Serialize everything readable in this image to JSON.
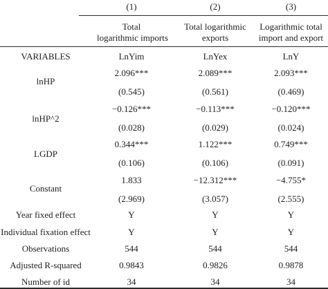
{
  "header": {
    "col_numbers": [
      "(1)",
      "(2)",
      "(3)"
    ],
    "col1_line1": "Total",
    "col1_line2": "logarithmic imports",
    "col2_line1": "Total logarithmic",
    "col2_line2": "exports",
    "col3_line1": "Logarithmic total",
    "col3_line2": "import and export"
  },
  "variables_row": {
    "label": "VARIABLES",
    "values": [
      "LnYim",
      "LnYex",
      "LnY"
    ]
  },
  "rows": [
    {
      "label": "lnHP",
      "coef": [
        "2.096***",
        "2.089***",
        "2.093***"
      ],
      "se": [
        "(0.545)",
        "(0.561)",
        "(0.469)"
      ]
    },
    {
      "label": "lnHP^2",
      "coef": [
        "−0.126***",
        "−0.113***",
        "−0.120***"
      ],
      "se": [
        "(0.028)",
        "(0.029)",
        "(0.024)"
      ]
    },
    {
      "label": "LGDP",
      "coef": [
        "0.344***",
        "1.122***",
        "0.749***"
      ],
      "se": [
        "(0.106)",
        "(0.106)",
        "(0.091)"
      ]
    },
    {
      "label": "Constant",
      "coef": [
        "1.833",
        "−12.312***",
        "−4.755*"
      ],
      "se": [
        "(2.969)",
        "(3.057)",
        "(2.555)"
      ]
    }
  ],
  "summary_rows": [
    {
      "label": "Year fixed effect",
      "values": [
        "Y",
        "Y",
        "Y"
      ]
    },
    {
      "label": "Individual fixation effect",
      "values": [
        "Y",
        "Y",
        "Y"
      ]
    },
    {
      "label": "Observations",
      "values": [
        "544",
        "544",
        "544"
      ]
    },
    {
      "label": "Adjusted R-squared",
      "values": [
        "0.9843",
        "0.9826",
        "0.9878"
      ]
    },
    {
      "label": "Number of id",
      "values": [
        "34",
        "34",
        "34"
      ]
    }
  ]
}
